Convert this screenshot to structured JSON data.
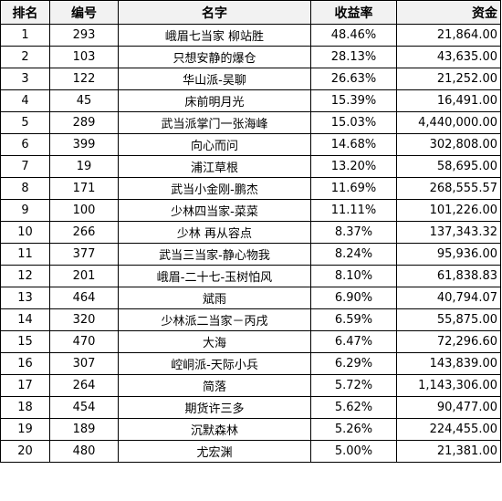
{
  "table": {
    "headers": {
      "rank": "排名",
      "code": "编号",
      "name": "名字",
      "rate": "收益率",
      "fund": "资金"
    },
    "rows": [
      {
        "rank": "1",
        "code": "293",
        "name": "峨眉七当家 柳站胜",
        "rate": "48.46%",
        "fund": "21,864.00"
      },
      {
        "rank": "2",
        "code": "103",
        "name": "只想安静的爆仓",
        "rate": "28.13%",
        "fund": "43,635.00"
      },
      {
        "rank": "3",
        "code": "122",
        "name": "华山派-吴聊",
        "rate": "26.63%",
        "fund": "21,252.00"
      },
      {
        "rank": "4",
        "code": "45",
        "name": "床前明月光",
        "rate": "15.39%",
        "fund": "16,491.00"
      },
      {
        "rank": "5",
        "code": "289",
        "name": "武当派掌门一张海峰",
        "rate": "15.03%",
        "fund": "4,440,000.00"
      },
      {
        "rank": "6",
        "code": "399",
        "name": "向心而问",
        "rate": "14.68%",
        "fund": "302,808.00"
      },
      {
        "rank": "7",
        "code": "19",
        "name": "浦江草根",
        "rate": "13.20%",
        "fund": "58,695.00"
      },
      {
        "rank": "8",
        "code": "171",
        "name": "武当小金刚-鹏杰",
        "rate": "11.69%",
        "fund": "268,555.57"
      },
      {
        "rank": "9",
        "code": "100",
        "name": "少林四当家-菜菜",
        "rate": "11.11%",
        "fund": "101,226.00"
      },
      {
        "rank": "10",
        "code": "266",
        "name": "少林 再从容点",
        "rate": "8.37%",
        "fund": "137,343.32"
      },
      {
        "rank": "11",
        "code": "377",
        "name": "武当三当家-静心物我",
        "rate": "8.24%",
        "fund": "95,936.00"
      },
      {
        "rank": "12",
        "code": "201",
        "name": "峨眉-二十七-玉树怕风",
        "rate": "8.10%",
        "fund": "61,838.83"
      },
      {
        "rank": "13",
        "code": "464",
        "name": "斌雨",
        "rate": "6.90%",
        "fund": "40,794.07"
      },
      {
        "rank": "14",
        "code": "320",
        "name": "少林派二当家－丙戌",
        "rate": "6.59%",
        "fund": "55,875.00"
      },
      {
        "rank": "15",
        "code": "470",
        "name": "大海",
        "rate": "6.47%",
        "fund": "72,296.60"
      },
      {
        "rank": "16",
        "code": "307",
        "name": "崆峒派-天际小兵",
        "rate": "6.29%",
        "fund": "143,839.00"
      },
      {
        "rank": "17",
        "code": "264",
        "name": "简落",
        "rate": "5.72%",
        "fund": "1,143,306.00"
      },
      {
        "rank": "18",
        "code": "454",
        "name": "期货许三多",
        "rate": "5.62%",
        "fund": "90,477.00"
      },
      {
        "rank": "19",
        "code": "189",
        "name": "沉默森林",
        "rate": "5.26%",
        "fund": "224,455.00"
      },
      {
        "rank": "20",
        "code": "480",
        "name": "尤宏渊",
        "rate": "5.00%",
        "fund": "21,381.00"
      }
    ]
  }
}
